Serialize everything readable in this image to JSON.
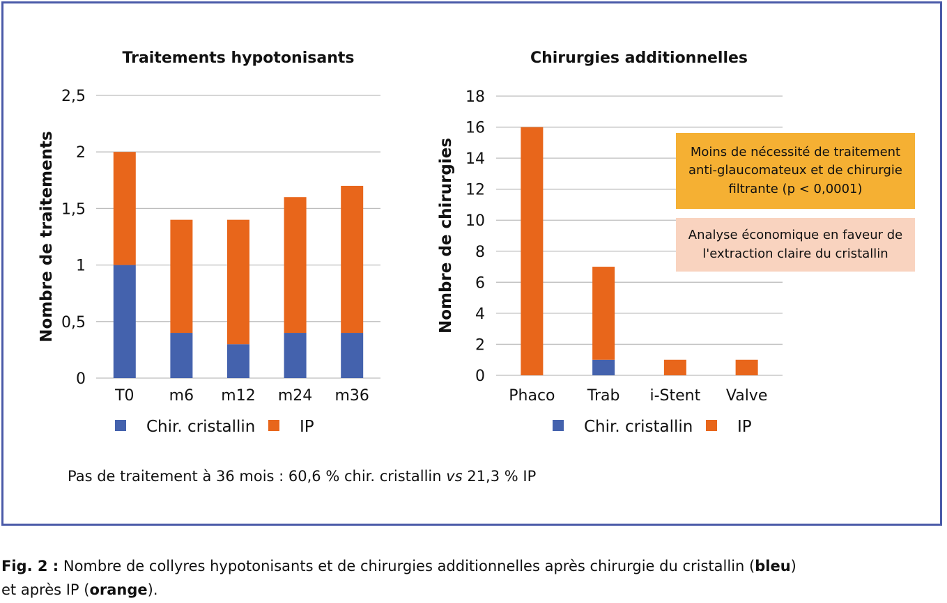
{
  "colors": {
    "blue": "#4462ad",
    "orange": "#e8661b",
    "frame": "#4a5aa8",
    "note_orange": "#f5b033",
    "note_peach": "#f9d3bf"
  },
  "chart_data": [
    {
      "type": "bar",
      "stacked": true,
      "title": "Traitements hypotonisants",
      "xlabel": "",
      "ylabel": "Nombre de traitements",
      "categories": [
        "T0",
        "m6",
        "m12",
        "m24",
        "m36"
      ],
      "series": [
        {
          "name": "Chir. cristallin",
          "color": "#4462ad",
          "values": [
            1.0,
            0.4,
            0.3,
            0.4,
            0.4
          ]
        },
        {
          "name": "IP",
          "color": "#e8661b",
          "values": [
            1.0,
            1.0,
            1.1,
            1.2,
            1.3
          ]
        }
      ],
      "ylim": [
        0,
        2.5
      ],
      "yticks": [
        0,
        0.5,
        1,
        1.5,
        2,
        2.5
      ],
      "ytick_labels": [
        "0",
        "0,5",
        "1",
        "1,5",
        "2",
        "2,5"
      ],
      "grid": true,
      "legend": "bottom"
    },
    {
      "type": "bar",
      "stacked": true,
      "title": "Chirurgies additionnelles",
      "xlabel": "",
      "ylabel": "Nombre de chirurgies",
      "categories": [
        "Phaco",
        "Trab",
        "i-Stent",
        "Valve"
      ],
      "series": [
        {
          "name": "Chir. cristallin",
          "color": "#4462ad",
          "values": [
            0,
            1,
            0,
            0
          ]
        },
        {
          "name": "IP",
          "color": "#e8661b",
          "values": [
            16,
            6,
            1,
            1
          ]
        }
      ],
      "ylim": [
        0,
        18
      ],
      "yticks": [
        0,
        2,
        4,
        6,
        8,
        10,
        12,
        14,
        16,
        18
      ],
      "ytick_labels": [
        "0",
        "2",
        "4",
        "6",
        "8",
        "10",
        "12",
        "14",
        "16",
        "18"
      ],
      "grid": true,
      "legend": "bottom"
    }
  ],
  "notes": {
    "box1": "Moins de nécessité de traitement\nanti-glaucomateux et de chirurgie\nfiltrante (p < 0,0001)",
    "box2": "Analyse économique en faveur de\nl'extraction claire du cristallin"
  },
  "footnote": {
    "pre": "Pas de traitement à 36 mois : 60,6 % chir. cristallin ",
    "italic": "vs",
    "post": " 21,3 % IP"
  },
  "caption": {
    "label": "Fig. 2 :",
    "text1": " Nombre de collyres hypotonisants et de chirurgies additionnelles après chirurgie du cristallin (",
    "bold1": "bleu",
    "text2": ")\net après IP (",
    "bold2": "orange",
    "text3": ")."
  }
}
